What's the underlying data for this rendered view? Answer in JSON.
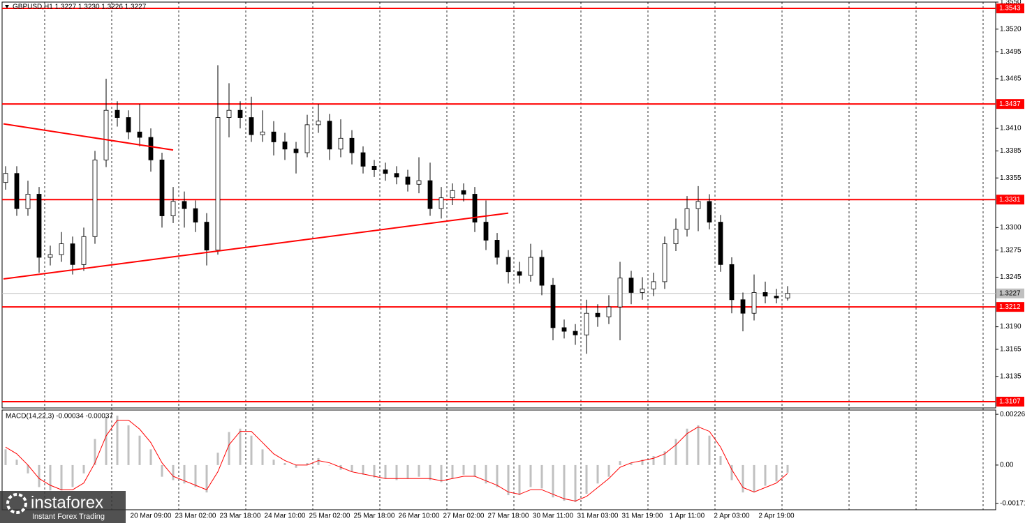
{
  "chart_data": [
    {
      "type": "candlestick",
      "title": "GBPUSD,H1  1.3227 1.3230 1.3226 1.3227",
      "categories": [
        null,
        null,
        null,
        null,
        null,
        null,
        null,
        null,
        null,
        null,
        null,
        null,
        null,
        "20 Mar 09:00",
        null,
        null,
        null,
        "23 Mar 02:00",
        null,
        null,
        null,
        "23 Mar 18:00",
        null,
        null,
        null,
        "24 Mar 10:00",
        null,
        null,
        null,
        "25 Mar 02:00",
        null,
        null,
        null,
        "25 Mar 18:00",
        null,
        null,
        null,
        "26 Mar 10:00",
        null,
        null,
        null,
        "27 Mar 02:00",
        null,
        null,
        null,
        "27 Mar 18:00",
        null,
        null,
        null,
        "30 Mar 11:00",
        null,
        null,
        null,
        "31 Mar 03:00",
        null,
        null,
        null,
        "31 Mar 19:00",
        null,
        null,
        null,
        "1 Apr 11:00",
        null,
        null,
        null,
        "2 Apr 03:00",
        null,
        null,
        null,
        "2 Apr 19:00",
        null
      ],
      "open": [
        1.335,
        1.336,
        1.3321,
        1.3337,
        1.3267,
        1.327,
        1.3282,
        1.3259,
        1.329,
        1.3375,
        1.343,
        1.3422,
        1.3406,
        1.34,
        1.3375,
        1.3313,
        1.3329,
        1.3321,
        1.3306,
        1.3275,
        1.3422,
        1.343,
        1.3422,
        1.3403,
        1.3406,
        1.3395,
        1.3387,
        1.3383,
        1.3414,
        1.3418,
        1.3387,
        1.3399,
        1.3383,
        1.3368,
        1.3364,
        1.336,
        1.3356,
        1.3348,
        1.3352,
        1.3321,
        1.3333,
        1.3341,
        1.3337,
        1.3306,
        1.3286,
        1.3267,
        1.3251,
        1.3247,
        1.3267,
        1.3236,
        1.3189,
        1.3185,
        1.3181,
        1.3205,
        1.3201,
        1.3212,
        1.3244,
        1.3228,
        1.3232,
        1.324,
        1.3282,
        1.3298,
        1.3321,
        1.3329,
        1.3306,
        1.3259,
        1.322,
        1.3205,
        1.3228,
        1.3224,
        1.3222
      ],
      "high": [
        1.3368,
        1.3368,
        1.3352,
        1.3345,
        1.328,
        1.3295,
        1.329,
        1.33,
        1.3385,
        1.3465,
        1.344,
        1.343,
        1.3437,
        1.341,
        1.3383,
        1.3345,
        1.334,
        1.333,
        1.3316,
        1.348,
        1.346,
        1.344,
        1.3445,
        1.343,
        1.3418,
        1.3405,
        1.3395,
        1.3425,
        1.3437,
        1.3426,
        1.342,
        1.3408,
        1.339,
        1.3375,
        1.3372,
        1.3368,
        1.3364,
        1.3378,
        1.3372,
        1.3345,
        1.3349,
        1.3349,
        1.3345,
        1.333,
        1.3294,
        1.3275,
        1.3262,
        1.3282,
        1.3275,
        1.3244,
        1.3198,
        1.3193,
        1.322,
        1.3215,
        1.3225,
        1.3262,
        1.3252,
        1.3245,
        1.325,
        1.329,
        1.331,
        1.3335,
        1.3346,
        1.3337,
        1.3314,
        1.3267,
        1.3228,
        1.3248,
        1.324,
        1.3232,
        1.3235
      ],
      "low": [
        1.3342,
        1.3313,
        1.3313,
        1.325,
        1.3258,
        1.3262,
        1.3248,
        1.3252,
        1.3282,
        1.3367,
        1.3412,
        1.3398,
        1.339,
        1.3362,
        1.33,
        1.3305,
        1.33,
        1.3295,
        1.3258,
        1.327,
        1.34,
        1.341,
        1.3395,
        1.3395,
        1.338,
        1.3375,
        1.336,
        1.3378,
        1.3405,
        1.3375,
        1.3378,
        1.337,
        1.336,
        1.3356,
        1.3352,
        1.3348,
        1.334,
        1.3338,
        1.3313,
        1.331,
        1.3325,
        1.3329,
        1.3295,
        1.3275,
        1.3259,
        1.3238,
        1.3238,
        1.324,
        1.3225,
        1.3175,
        1.3177,
        1.317,
        1.316,
        1.319,
        1.3193,
        1.3175,
        1.3215,
        1.322,
        1.3224,
        1.3232,
        1.3274,
        1.329,
        1.3296,
        1.3298,
        1.3251,
        1.3205,
        1.3185,
        1.3197,
        1.3216,
        1.3216,
        1.3219
      ],
      "close": [
        1.336,
        1.3321,
        1.3337,
        1.3267,
        1.327,
        1.3282,
        1.3259,
        1.329,
        1.3375,
        1.343,
        1.3422,
        1.3406,
        1.34,
        1.3375,
        1.3313,
        1.3329,
        1.3321,
        1.3306,
        1.3275,
        1.3422,
        1.343,
        1.3422,
        1.3403,
        1.3406,
        1.3395,
        1.3387,
        1.3383,
        1.3414,
        1.3418,
        1.3387,
        1.3399,
        1.3383,
        1.3368,
        1.3364,
        1.336,
        1.3356,
        1.3348,
        1.3352,
        1.3321,
        1.3333,
        1.3341,
        1.3337,
        1.3306,
        1.3286,
        1.3267,
        1.3251,
        1.3247,
        1.3267,
        1.3236,
        1.3189,
        1.3185,
        1.3181,
        1.3205,
        1.3201,
        1.3212,
        1.3244,
        1.3228,
        1.3232,
        1.324,
        1.3282,
        1.3298,
        1.3321,
        1.3329,
        1.3306,
        1.3259,
        1.322,
        1.3205,
        1.3228,
        1.3224,
        1.3222,
        1.3227
      ],
      "colors": {
        "up": "#ffffff",
        "down": "#000000",
        "outline": "#000000"
      },
      "ylim": [
        1.31,
        1.355
      ],
      "yticks": [
        {
          "value": 1.355,
          "label": "1.3550"
        },
        {
          "value": 1.352,
          "label": "1.3520"
        },
        1.3495,
        1.3465,
        {
          "value": 1.341,
          "label": "1.3410"
        },
        1.3385,
        1.3355,
        {
          "value": 1.33,
          "label": "1.3300"
        },
        1.3275,
        1.3245,
        {
          "value": 1.319,
          "label": "1.3190"
        },
        1.3165,
        1.3135
      ],
      "levels": {
        "color": "#ff0000",
        "values": [
          1.3543,
          1.3437,
          1.3331,
          1.3212,
          1.3107
        ]
      },
      "current_price": 1.3227,
      "trendlines": [
        {
          "color": "#ff0000",
          "x": [
            0,
            15
          ],
          "values": [
            1.3415,
            1.3386
          ]
        },
        {
          "color": "#ff0000",
          "x": [
            0,
            45
          ],
          "values": [
            1.3243,
            1.3316
          ]
        }
      ],
      "grid": true
    },
    {
      "type": "macd",
      "title": "MACD(14,22,3) -0.00034 -0.00037",
      "histogram": {
        "color": "#c0c0c0",
        "values": [
          0.0007,
          0.00024,
          -0.00037,
          -0.00098,
          -0.00113,
          -0.00113,
          -0.00098,
          -0.00037,
          0.00116,
          0.00214,
          0.0022,
          0.00177,
          0.00131,
          0.0007,
          -0.00052,
          -0.00067,
          -0.00082,
          -0.00098,
          -0.00122,
          0.00055,
          0.00147,
          0.00162,
          0.00131,
          0.0007,
          0.00024,
          9e-05,
          -0.00012,
          9e-05,
          0.00031,
          0,
          -0.00021,
          -0.00031,
          -0.00043,
          -0.00055,
          -0.00061,
          -0.00067,
          -0.00061,
          -0.00052,
          -0.00067,
          -0.00076,
          -0.00061,
          -0.00043,
          -0.00052,
          -0.00082,
          -0.00098,
          -0.00134,
          -0.00134,
          -0.00098,
          -0.00104,
          -0.00144,
          -0.00159,
          -0.00165,
          -0.00128,
          -0.00082,
          -0.00052,
          0.00018,
          9e-05,
          0.00024,
          0.0004,
          0.00061,
          0.00116,
          0.00162,
          0.00177,
          0.00131,
          0.0004,
          -0.00067,
          -0.00122,
          -0.00122,
          -0.00092,
          -0.00073,
          -0.00034
        ]
      },
      "signal": {
        "color": "#ff0000",
        "values": [
          0.0008,
          0.0005,
          0,
          -0.0006,
          -0.0009,
          -0.0011,
          -0.0011,
          -0.0008,
          0.0001,
          0.0013,
          0.002,
          0.002,
          0.0016,
          0.001,
          0.0001,
          -0.0005,
          -0.0007,
          -0.0009,
          -0.0011,
          -0.0003,
          0.0009,
          0.0015,
          0.0015,
          0.001,
          0.0005,
          0.0002,
          0,
          0,
          0.0002,
          0.0001,
          -0.0001,
          -0.0003,
          -0.0004,
          -0.0005,
          -0.0006,
          -0.0006,
          -0.0006,
          -0.0006,
          -0.0006,
          -0.0007,
          -0.0006,
          -0.0005,
          -0.0005,
          -0.0007,
          -0.0009,
          -0.0012,
          -0.0013,
          -0.0011,
          -0.0011,
          -0.0013,
          -0.0015,
          -0.0016,
          -0.0014,
          -0.001,
          -0.0006,
          -0.0001,
          0.0001,
          0.0002,
          0.0003,
          0.0005,
          0.0009,
          0.0014,
          0.0017,
          0.0015,
          0.0008,
          -0.0002,
          -0.001,
          -0.0012,
          -0.001,
          -0.0008,
          -0.00037
        ]
      },
      "ylim": [
        -0.00199,
        0.00245
      ],
      "yticks": [
        0.00226,
        {
          "value": 0,
          "label": "0.00"
        },
        -0.00171
      ]
    }
  ],
  "watermark": {
    "brand": "instaforex",
    "tagline": "Instant Forex Trading"
  }
}
